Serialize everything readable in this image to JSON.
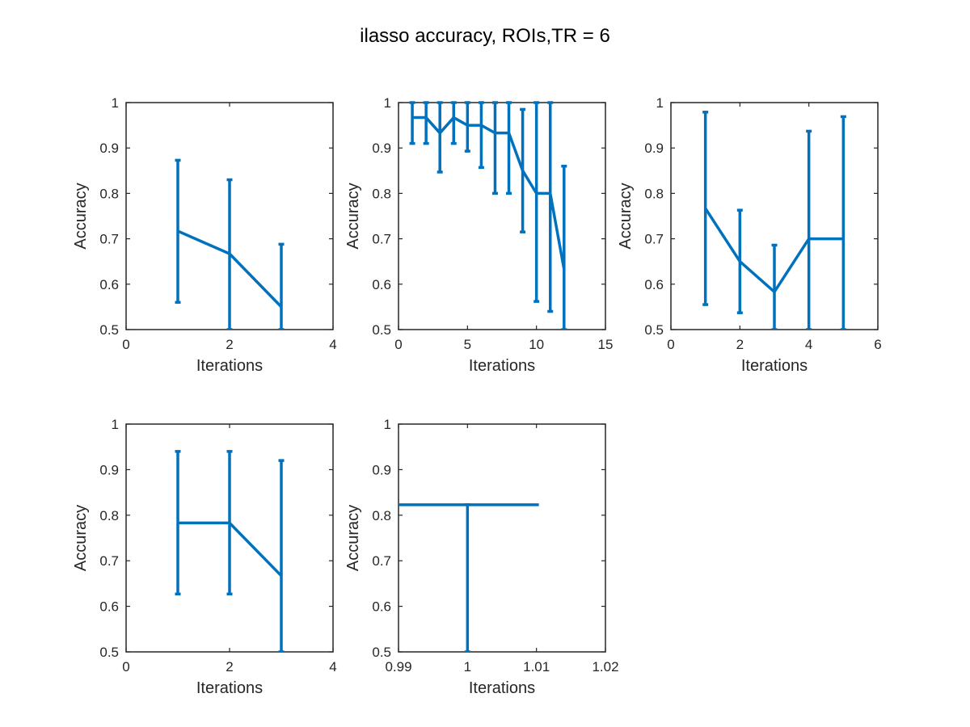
{
  "title": "ilasso accuracy, ROIs,TR = 6",
  "colors": {
    "series": "#0072BD",
    "axes": "#262626"
  },
  "chart_data": [
    {
      "type": "line",
      "error_bars": true,
      "xlabel": "Iterations",
      "ylabel": "Accuracy",
      "xlim": [
        0,
        4
      ],
      "ylim": [
        0.5,
        1
      ],
      "xticks": [
        0,
        2,
        4
      ],
      "xtick_labels": [
        "0",
        "2",
        "4"
      ],
      "yticks": [
        0.5,
        0.6,
        0.7,
        0.8,
        0.9,
        1
      ],
      "ytick_labels": [
        "0.5",
        "0.6",
        "0.7",
        "0.8",
        "0.9",
        "1"
      ],
      "x": [
        1,
        2,
        3
      ],
      "y": [
        0.717,
        0.667,
        0.55
      ],
      "err_low": [
        0.56,
        0.5,
        0.5
      ],
      "err_high": [
        0.873,
        0.83,
        0.688
      ]
    },
    {
      "type": "line",
      "error_bars": true,
      "xlabel": "Iterations",
      "ylabel": "Accuracy",
      "xlim": [
        0,
        15
      ],
      "ylim": [
        0.5,
        1
      ],
      "xticks": [
        0,
        5,
        10,
        15
      ],
      "xtick_labels": [
        "0",
        "5",
        "10",
        "15"
      ],
      "yticks": [
        0.5,
        0.6,
        0.7,
        0.8,
        0.9,
        1
      ],
      "ytick_labels": [
        "0.5",
        "0.6",
        "0.7",
        "0.8",
        "0.9",
        "1"
      ],
      "x": [
        1,
        2,
        3,
        4,
        5,
        6,
        7,
        8,
        9,
        10,
        11,
        12
      ],
      "y": [
        0.967,
        0.967,
        0.933,
        0.967,
        0.95,
        0.95,
        0.933,
        0.933,
        0.85,
        0.8,
        0.8,
        0.633
      ],
      "err_low": [
        0.91,
        0.91,
        0.847,
        0.91,
        0.893,
        0.857,
        0.8,
        0.8,
        0.715,
        0.562,
        0.54,
        0.5
      ],
      "err_high": [
        1,
        1,
        1,
        1,
        1,
        1,
        1,
        1,
        0.985,
        1,
        1,
        0.86
      ]
    },
    {
      "type": "line",
      "error_bars": true,
      "xlabel": "Iterations",
      "ylabel": "Accuracy",
      "xlim": [
        0,
        6
      ],
      "ylim": [
        0.5,
        1
      ],
      "xticks": [
        0,
        2,
        4,
        6
      ],
      "xtick_labels": [
        "0",
        "2",
        "4",
        "6"
      ],
      "yticks": [
        0.5,
        0.6,
        0.7,
        0.8,
        0.9,
        1
      ],
      "ytick_labels": [
        "0.5",
        "0.6",
        "0.7",
        "0.8",
        "0.9",
        "1"
      ],
      "x": [
        1,
        2,
        3,
        4,
        5
      ],
      "y": [
        0.767,
        0.65,
        0.583,
        0.7,
        0.7
      ],
      "err_low": [
        0.555,
        0.537,
        0.5,
        0.5,
        0.5
      ],
      "err_high": [
        0.979,
        0.763,
        0.686,
        0.937,
        0.969
      ]
    },
    {
      "type": "line",
      "error_bars": true,
      "xlabel": "Iterations",
      "ylabel": "Accuracy",
      "xlim": [
        0,
        4
      ],
      "ylim": [
        0.5,
        1
      ],
      "xticks": [
        0,
        2,
        4
      ],
      "xtick_labels": [
        "0",
        "2",
        "4"
      ],
      "yticks": [
        0.5,
        0.6,
        0.7,
        0.8,
        0.9,
        1
      ],
      "ytick_labels": [
        "0.5",
        "0.6",
        "0.7",
        "0.8",
        "0.9",
        "1"
      ],
      "x": [
        1,
        2,
        3
      ],
      "y": [
        0.783,
        0.783,
        0.667
      ],
      "err_low": [
        0.627,
        0.627,
        0.5
      ],
      "err_high": [
        0.94,
        0.94,
        0.92
      ]
    },
    {
      "type": "line",
      "error_bars": true,
      "xlabel": "Iterations",
      "ylabel": "Accuracy",
      "xlim": [
        0.99,
        1.02
      ],
      "ylim": [
        0.5,
        1
      ],
      "xticks": [
        0.99,
        1,
        1.01,
        1.02
      ],
      "xtick_labels": [
        "0.99",
        "1",
        "1.01",
        "1.02"
      ],
      "yticks": [
        0.5,
        0.6,
        0.7,
        0.8,
        0.9,
        1
      ],
      "ytick_labels": [
        "0.5",
        "0.6",
        "0.7",
        "0.8",
        "0.9",
        "1"
      ],
      "x": [
        1
      ],
      "y": [
        0.823
      ],
      "err_low": [
        0.5
      ],
      "err_high": [
        0.823
      ]
    }
  ]
}
